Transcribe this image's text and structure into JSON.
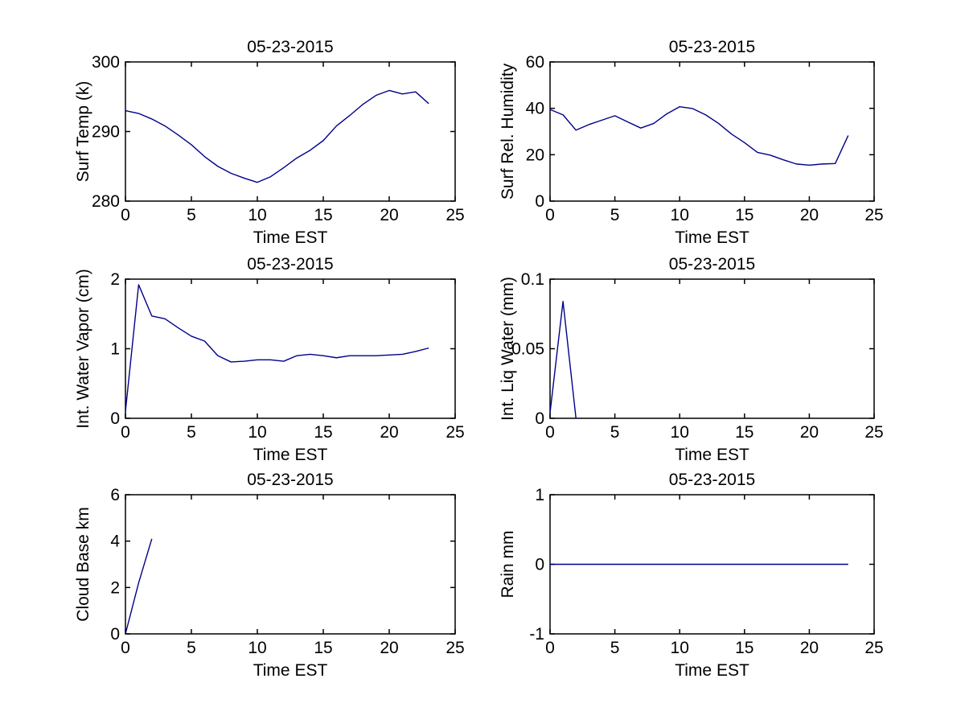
{
  "figure": {
    "date_label": "05-23-2015",
    "background_color": "#FFFFFF",
    "axis_color": "#000000",
    "line_color": "#00008B",
    "grid": "off",
    "legend": "none"
  },
  "chart_data": [
    {
      "id": "surf-temp",
      "type": "line",
      "title": "05-23-2015",
      "xlabel": "Time EST",
      "ylabel": "Surf Temp (k)",
      "xlim": [
        0,
        25
      ],
      "ylim": [
        280,
        300
      ],
      "xticks": [
        0,
        5,
        10,
        15,
        20,
        25
      ],
      "xtick_labels": [
        "0",
        "5",
        "10",
        "15",
        "20",
        "25"
      ],
      "yticks": [
        280,
        290,
        300
      ],
      "ytick_labels": [
        "280",
        "290",
        "300"
      ],
      "x": [
        0,
        1,
        2,
        3,
        4,
        5,
        6,
        7,
        8,
        9,
        10,
        11,
        12,
        13,
        14,
        15,
        16,
        17,
        18,
        19,
        20,
        21,
        22,
        23
      ],
      "y": [
        293.0,
        292.6,
        291.8,
        290.8,
        289.5,
        288.1,
        286.4,
        285.0,
        284.0,
        283.3,
        282.7,
        283.5,
        284.8,
        286.2,
        287.3,
        288.7,
        290.8,
        292.3,
        293.9,
        295.2,
        295.9,
        295.4,
        295.7,
        294.0
      ]
    },
    {
      "id": "surf-rel-humidity",
      "type": "line",
      "title": "05-23-2015",
      "xlabel": "Time EST",
      "ylabel": "Surf Rel. Humidity",
      "xlim": [
        0,
        25
      ],
      "ylim": [
        0,
        60
      ],
      "xticks": [
        0,
        5,
        10,
        15,
        20,
        25
      ],
      "xtick_labels": [
        "0",
        "5",
        "10",
        "15",
        "20",
        "25"
      ],
      "yticks": [
        0,
        20,
        40,
        60
      ],
      "ytick_labels": [
        "0",
        "20",
        "40",
        "60"
      ],
      "x": [
        0,
        1,
        2,
        3,
        4,
        5,
        6,
        7,
        8,
        9,
        10,
        11,
        12,
        13,
        14,
        15,
        16,
        17,
        18,
        19,
        20,
        21,
        22,
        23
      ],
      "y": [
        39.5,
        37.2,
        30.6,
        33.0,
        34.9,
        36.8,
        34.1,
        31.5,
        33.5,
        37.6,
        40.7,
        39.9,
        37.2,
        33.5,
        28.9,
        25.2,
        21.0,
        19.8,
        17.8,
        16.0,
        15.5,
        16.0,
        16.2,
        28.3
      ]
    },
    {
      "id": "int-water-vapor",
      "type": "line",
      "title": "05-23-2015",
      "xlabel": "Time EST",
      "ylabel": "Int. Water Vapor (cm)",
      "xlim": [
        0,
        25
      ],
      "ylim": [
        0,
        2
      ],
      "xticks": [
        0,
        5,
        10,
        15,
        20,
        25
      ],
      "xtick_labels": [
        "0",
        "5",
        "10",
        "15",
        "20",
        "25"
      ],
      "yticks": [
        0,
        1,
        2
      ],
      "ytick_labels": [
        "0",
        "1",
        "2"
      ],
      "x": [
        0,
        1,
        2,
        3,
        4,
        5,
        6,
        7,
        8,
        9,
        10,
        11,
        12,
        13,
        14,
        15,
        16,
        17,
        18,
        19,
        20,
        21,
        22,
        23
      ],
      "y": [
        0.1,
        1.92,
        1.47,
        1.43,
        1.3,
        1.18,
        1.11,
        0.9,
        0.81,
        0.82,
        0.84,
        0.84,
        0.82,
        0.9,
        0.92,
        0.9,
        0.87,
        0.9,
        0.9,
        0.9,
        0.91,
        0.92,
        0.96,
        1.01
      ]
    },
    {
      "id": "int-liq-water",
      "type": "line",
      "title": "05-23-2015",
      "xlabel": "Time EST",
      "ylabel": "Int. Liq Water (mm)",
      "xlim": [
        0,
        25
      ],
      "ylim": [
        0,
        0.1
      ],
      "xticks": [
        0,
        5,
        10,
        15,
        20,
        25
      ],
      "xtick_labels": [
        "0",
        "5",
        "10",
        "15",
        "20",
        "25"
      ],
      "yticks": [
        0,
        0.05,
        0.1
      ],
      "ytick_labels": [
        "0",
        "0.05",
        "0.1"
      ],
      "x": [
        0,
        1,
        2
      ],
      "y": [
        0.004,
        0.084,
        0.0
      ]
    },
    {
      "id": "cloud-base",
      "type": "line",
      "title": "05-23-2015",
      "xlabel": "Time EST",
      "ylabel": "Cloud Base km",
      "xlim": [
        0,
        25
      ],
      "ylim": [
        0,
        6
      ],
      "xticks": [
        0,
        5,
        10,
        15,
        20,
        25
      ],
      "xtick_labels": [
        "0",
        "5",
        "10",
        "15",
        "20",
        "25"
      ],
      "yticks": [
        0,
        2,
        4,
        6
      ],
      "ytick_labels": [
        "0",
        "2",
        "4",
        "6"
      ],
      "x": [
        0,
        1,
        2
      ],
      "y": [
        0.0,
        2.2,
        4.1
      ]
    },
    {
      "id": "rain",
      "type": "line",
      "title": "05-23-2015",
      "xlabel": "Time EST",
      "ylabel": "Rain mm",
      "xlim": [
        0,
        25
      ],
      "ylim": [
        -1,
        1
      ],
      "xticks": [
        0,
        5,
        10,
        15,
        20,
        25
      ],
      "xtick_labels": [
        "0",
        "5",
        "10",
        "15",
        "20",
        "25"
      ],
      "yticks": [
        -1,
        0,
        1
      ],
      "ytick_labels": [
        "-1",
        "0",
        "1"
      ],
      "x": [
        0,
        1,
        2,
        3,
        4,
        5,
        6,
        7,
        8,
        9,
        10,
        11,
        12,
        13,
        14,
        15,
        16,
        17,
        18,
        19,
        20,
        21,
        22,
        23
      ],
      "y": [
        0,
        0,
        0,
        0,
        0,
        0,
        0,
        0,
        0,
        0,
        0,
        0,
        0,
        0,
        0,
        0,
        0,
        0,
        0,
        0,
        0,
        0,
        0,
        0
      ]
    }
  ]
}
